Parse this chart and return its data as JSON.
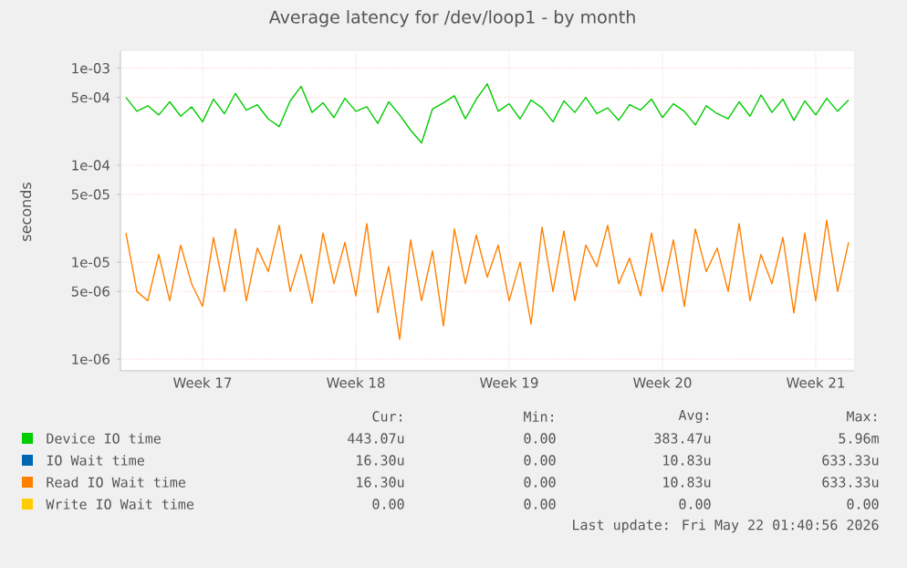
{
  "chart_data": {
    "type": "line",
    "title": "Average latency for /dev/loop1 - by month",
    "ylabel": "seconds",
    "log": "y",
    "grid": true,
    "legend": "bottom",
    "ylim": [
      7.6e-07,
      0.0015
    ],
    "yticks": [
      {
        "value": 1e-06,
        "label": "1e-06"
      },
      {
        "value": 5e-06,
        "label": "5e-06"
      },
      {
        "value": 1e-05,
        "label": "1e-05"
      },
      {
        "value": 5e-05,
        "label": "5e-05"
      },
      {
        "value": 0.0001,
        "label": "1e-04"
      },
      {
        "value": 0.0005,
        "label": "5e-04"
      },
      {
        "value": 0.001,
        "label": "1e-03"
      }
    ],
    "categories": [
      null,
      null,
      null,
      null,
      null,
      null,
      null,
      "Week 17",
      null,
      null,
      null,
      null,
      null,
      null,
      null,
      null,
      null,
      null,
      null,
      null,
      null,
      "Week 18",
      null,
      null,
      null,
      null,
      null,
      null,
      null,
      null,
      null,
      null,
      null,
      null,
      null,
      "Week 19",
      null,
      null,
      null,
      null,
      null,
      null,
      null,
      null,
      null,
      null,
      null,
      null,
      null,
      "Week 20",
      null,
      null,
      null,
      null,
      null,
      null,
      null,
      null,
      null,
      null,
      null,
      null,
      null,
      "Week 21",
      null,
      null,
      null
    ],
    "series": [
      {
        "name": "Device IO time",
        "color": "#00cc00",
        "values": [
          0.0005,
          0.00036,
          0.00041,
          0.00033,
          0.00045,
          0.00032,
          0.0004,
          0.00028,
          0.00048,
          0.00034,
          0.00055,
          0.00037,
          0.00042,
          0.0003,
          0.00025,
          0.00046,
          0.00065,
          0.00035,
          0.00044,
          0.00031,
          0.00049,
          0.00036,
          0.0004,
          0.00027,
          0.00045,
          0.00033,
          0.00023,
          0.00017,
          0.00038,
          0.00044,
          0.00052,
          0.0003,
          0.00048,
          0.00069,
          0.00036,
          0.00043,
          0.0003,
          0.00047,
          0.00039,
          0.00028,
          0.00046,
          0.00035,
          0.0005,
          0.00034,
          0.00039,
          0.00029,
          0.00042,
          0.00037,
          0.00048,
          0.00031,
          0.00043,
          0.00036,
          0.00026,
          0.00041,
          0.00034,
          0.0003,
          0.00045,
          0.00032,
          0.00053,
          0.00035,
          0.00048,
          0.00029,
          0.00046,
          0.00033,
          0.00049,
          0.00036,
          0.00047
        ]
      },
      {
        "name": "IO Wait time",
        "color": "#0066b3",
        "values": [
          null,
          null,
          null,
          null,
          null,
          null,
          null,
          null,
          null,
          null,
          null,
          null,
          null,
          null,
          null,
          null,
          null,
          null,
          null,
          null,
          null,
          null,
          null,
          null,
          null,
          null,
          null,
          null,
          null,
          null,
          null,
          null,
          null,
          null,
          null,
          null,
          null,
          null,
          null,
          null,
          null,
          null,
          null,
          null,
          null,
          null,
          null,
          null,
          null,
          null,
          null,
          null,
          null,
          null,
          null,
          null,
          null,
          null,
          null,
          null,
          null,
          null,
          null,
          null,
          null,
          null,
          null
        ]
      },
      {
        "name": "Read IO Wait time",
        "color": "#ff8000",
        "values": [
          2e-05,
          5e-06,
          4e-06,
          1.2e-05,
          4e-06,
          1.5e-05,
          6e-06,
          3.5e-06,
          1.8e-05,
          5e-06,
          2.2e-05,
          4e-06,
          1.4e-05,
          8e-06,
          2.4e-05,
          5e-06,
          1.2e-05,
          3.8e-06,
          2e-05,
          6e-06,
          1.6e-05,
          4.5e-06,
          2.5e-05,
          3e-06,
          9e-06,
          1.6e-06,
          1.7e-05,
          4e-06,
          1.3e-05,
          2.2e-06,
          2.2e-05,
          6e-06,
          1.9e-05,
          7e-06,
          1.5e-05,
          4e-06,
          1e-05,
          2.3e-06,
          2.3e-05,
          5e-06,
          2.1e-05,
          4e-06,
          1.5e-05,
          9e-06,
          2.4e-05,
          6e-06,
          1.1e-05,
          4.5e-06,
          2e-05,
          5e-06,
          1.7e-05,
          3.5e-06,
          2.2e-05,
          8e-06,
          1.4e-05,
          5e-06,
          2.5e-05,
          4e-06,
          1.2e-05,
          6e-06,
          1.8e-05,
          3e-06,
          2e-05,
          4e-06,
          2.7e-05,
          5e-06,
          1.6e-05
        ]
      },
      {
        "name": "Write IO Wait time",
        "color": "#ffcc00",
        "values": [
          null,
          null,
          null,
          null,
          null,
          null,
          null,
          null,
          null,
          null,
          null,
          null,
          null,
          null,
          null,
          null,
          null,
          null,
          null,
          null,
          null,
          null,
          null,
          null,
          null,
          null,
          null,
          null,
          null,
          null,
          null,
          null,
          null,
          null,
          null,
          null,
          null,
          null,
          null,
          null,
          null,
          null,
          null,
          null,
          null,
          null,
          null,
          null,
          null,
          null,
          null,
          null,
          null,
          null,
          null,
          null,
          null,
          null,
          null,
          null,
          null,
          null,
          null,
          null,
          null,
          null,
          null
        ]
      }
    ],
    "annotations": [
      "Cur:",
      "Min:",
      "Avg:",
      "Max:",
      "443.07u",
      "0.00",
      "383.47u",
      "5.96m",
      "16.30u",
      "0.00",
      "10.83u",
      "633.33u",
      "16.30u",
      "0.00",
      "10.83u",
      "633.33u",
      "0.00",
      "0.00",
      "0.00",
      "0.00",
      "Last update: Fri May 22 01:40:56 2026"
    ]
  }
}
